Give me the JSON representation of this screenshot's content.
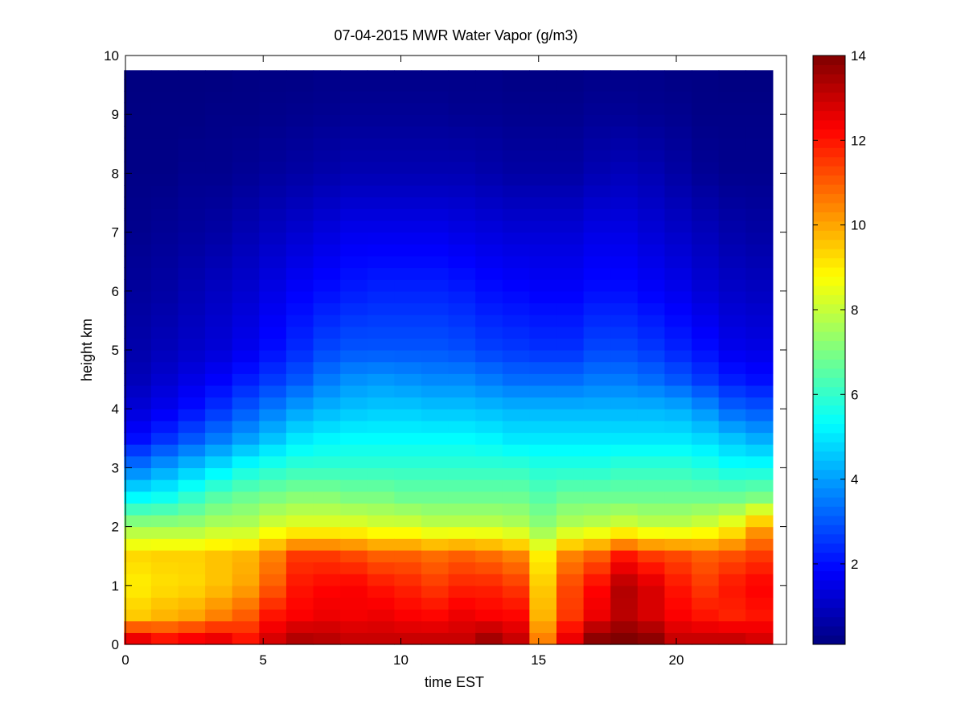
{
  "chart_data": {
    "type": "heatmap",
    "title": "07-04-2015 MWR Water Vapor (g/m3)",
    "xlabel": "time EST",
    "ylabel": "height km",
    "xlim": [
      0,
      24
    ],
    "ylim": [
      0,
      10
    ],
    "x_ticks": [
      0,
      5,
      10,
      15,
      20
    ],
    "y_ticks": [
      0,
      1,
      2,
      3,
      4,
      5,
      6,
      7,
      8,
      9,
      10
    ],
    "colorbar": {
      "colormap": "jet",
      "range": [
        0.1,
        14
      ],
      "ticks": [
        2,
        4,
        6,
        8,
        10,
        12,
        14
      ]
    },
    "grid": false,
    "time_hours": [
      0,
      1,
      2,
      3,
      4,
      5,
      6,
      7,
      8,
      9,
      10,
      11,
      12,
      13,
      14,
      15,
      16,
      17,
      18,
      19,
      20,
      21,
      22,
      23
    ],
    "height_km": [
      0.1,
      0.5,
      1.0,
      1.5,
      2.0,
      2.5,
      3.0,
      3.5,
      4.0,
      4.5,
      5.0,
      6.0,
      7.0,
      8.0,
      9.0,
      9.75
    ],
    "water_vapor_g_m3": [
      [
        12.5,
        12.0,
        12.3,
        12.5,
        12.0,
        12.8,
        13.3,
        13.2,
        13.0,
        13.0,
        13.0,
        13.0,
        13.0,
        13.5,
        13.0,
        10.5,
        12.5,
        13.8,
        14.0,
        13.8,
        13.0,
        13.0,
        13.0,
        12.8
      ],
      [
        9.5,
        9.8,
        10.0,
        10.5,
        11.0,
        12.0,
        12.3,
        12.5,
        12.4,
        12.5,
        12.3,
        12.2,
        12.5,
        12.3,
        12.2,
        9.8,
        11.5,
        12.5,
        13.2,
        12.8,
        12.3,
        12.0,
        11.8,
        12.0
      ],
      [
        9.0,
        9.2,
        9.3,
        9.6,
        10.0,
        11.0,
        12.0,
        12.2,
        12.3,
        12.0,
        11.8,
        11.5,
        11.8,
        11.8,
        11.5,
        9.5,
        11.3,
        12.2,
        13.3,
        12.8,
        12.0,
        11.5,
        12.0,
        12.3
      ],
      [
        9.3,
        9.4,
        9.4,
        9.6,
        9.8,
        10.5,
        11.5,
        11.5,
        11.3,
        11.0,
        11.0,
        10.8,
        11.0,
        10.8,
        10.5,
        9.0,
        10.5,
        11.0,
        12.0,
        11.5,
        11.3,
        11.0,
        11.2,
        11.5
      ],
      [
        7.5,
        7.5,
        7.5,
        7.8,
        7.8,
        8.3,
        8.5,
        8.5,
        8.5,
        8.3,
        8.3,
        8.0,
        8.0,
        8.0,
        7.8,
        7.3,
        7.8,
        8.0,
        8.3,
        8.0,
        8.0,
        8.3,
        8.8,
        10.0
      ],
      [
        5.3,
        5.5,
        6.0,
        6.5,
        6.8,
        7.0,
        7.2,
        7.2,
        7.0,
        7.0,
        6.8,
        6.8,
        6.8,
        6.8,
        6.8,
        6.5,
        6.8,
        6.8,
        6.8,
        6.8,
        6.8,
        6.8,
        6.8,
        7.0
      ],
      [
        3.5,
        4.0,
        4.5,
        5.0,
        5.5,
        5.8,
        6.0,
        6.0,
        6.0,
        6.0,
        6.0,
        6.0,
        6.0,
        6.0,
        6.0,
        5.8,
        5.8,
        5.8,
        6.0,
        6.0,
        6.0,
        5.8,
        5.5,
        5.5
      ],
      [
        2.0,
        2.5,
        3.0,
        3.5,
        4.0,
        4.5,
        5.0,
        5.2,
        5.3,
        5.3,
        5.3,
        5.3,
        5.3,
        5.2,
        5.0,
        5.0,
        5.0,
        5.0,
        5.0,
        5.0,
        5.0,
        4.8,
        4.5,
        4.2
      ],
      [
        1.3,
        1.6,
        2.0,
        2.5,
        3.0,
        3.5,
        4.0,
        4.3,
        4.5,
        4.6,
        4.6,
        4.5,
        4.5,
        4.4,
        4.3,
        4.3,
        4.3,
        4.3,
        4.3,
        4.3,
        4.2,
        3.8,
        3.2,
        3.0
      ],
      [
        0.9,
        1.2,
        1.5,
        1.8,
        2.2,
        2.6,
        3.0,
        3.5,
        3.8,
        3.9,
        3.8,
        3.7,
        3.7,
        3.5,
        3.3,
        3.3,
        3.3,
        3.5,
        3.5,
        3.3,
        3.0,
        2.6,
        2.2,
        2.0
      ],
      [
        0.7,
        0.9,
        1.1,
        1.3,
        1.6,
        2.0,
        2.4,
        2.8,
        3.0,
        3.0,
        3.0,
        3.0,
        2.9,
        2.7,
        2.6,
        2.5,
        2.5,
        2.8,
        2.8,
        2.6,
        2.3,
        2.0,
        1.6,
        1.5
      ],
      [
        0.5,
        0.6,
        0.8,
        1.0,
        1.2,
        1.5,
        1.8,
        2.0,
        2.2,
        2.3,
        2.3,
        2.3,
        2.2,
        2.0,
        1.9,
        1.8,
        1.8,
        2.0,
        2.0,
        1.8,
        1.6,
        1.3,
        1.1,
        1.0
      ],
      [
        0.3,
        0.4,
        0.5,
        0.6,
        0.8,
        1.0,
        1.2,
        1.4,
        1.6,
        1.6,
        1.6,
        1.6,
        1.5,
        1.4,
        1.3,
        1.3,
        1.3,
        1.5,
        1.5,
        1.3,
        1.1,
        0.9,
        0.7,
        0.6
      ],
      [
        0.2,
        0.2,
        0.3,
        0.3,
        0.4,
        0.5,
        0.6,
        0.7,
        0.8,
        0.8,
        0.8,
        0.8,
        0.8,
        0.7,
        0.6,
        0.6,
        0.6,
        0.8,
        0.9,
        0.8,
        0.6,
        0.4,
        0.3,
        0.3
      ],
      [
        0.15,
        0.15,
        0.15,
        0.2,
        0.2,
        0.25,
        0.3,
        0.35,
        0.4,
        0.4,
        0.4,
        0.4,
        0.35,
        0.35,
        0.3,
        0.3,
        0.3,
        0.4,
        0.4,
        0.35,
        0.3,
        0.2,
        0.2,
        0.2
      ],
      [
        0.1,
        0.1,
        0.1,
        0.1,
        0.15,
        0.15,
        0.15,
        0.2,
        0.2,
        0.2,
        0.2,
        0.2,
        0.2,
        0.2,
        0.15,
        0.15,
        0.15,
        0.2,
        0.2,
        0.2,
        0.15,
        0.15,
        0.1,
        0.1
      ]
    ]
  }
}
